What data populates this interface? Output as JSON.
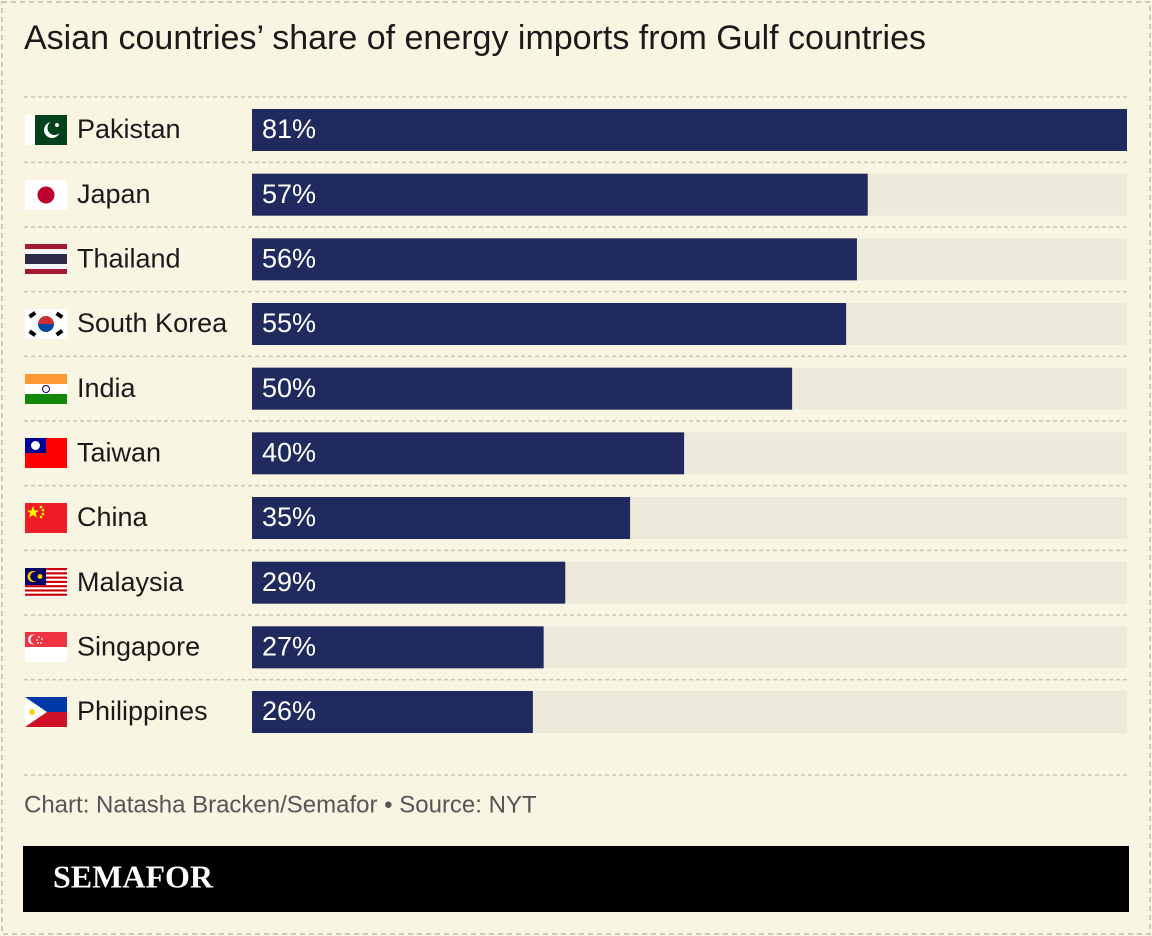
{
  "chart_data": {
    "type": "bar",
    "orientation": "horizontal",
    "title": "Asian countries’ share of energy imports from Gulf countries",
    "categories": [
      "Pakistan",
      "Japan",
      "Thailand",
      "South Korea",
      "India",
      "Taiwan",
      "China",
      "Malaysia",
      "Singapore",
      "Philippines"
    ],
    "values": [
      81,
      57,
      56,
      55,
      50,
      40,
      35,
      29,
      27,
      26
    ],
    "value_labels": [
      "81%",
      "57%",
      "56%",
      "55%",
      "50%",
      "40%",
      "35%",
      "29%",
      "27%",
      "26%"
    ],
    "color": "#212a5f",
    "track_color": "#eeeadb",
    "xlim": [
      0,
      81
    ],
    "source": "Chart: Natasha Bracken/Semafor • Source: NYT"
  },
  "brand": "SEMAFOR"
}
